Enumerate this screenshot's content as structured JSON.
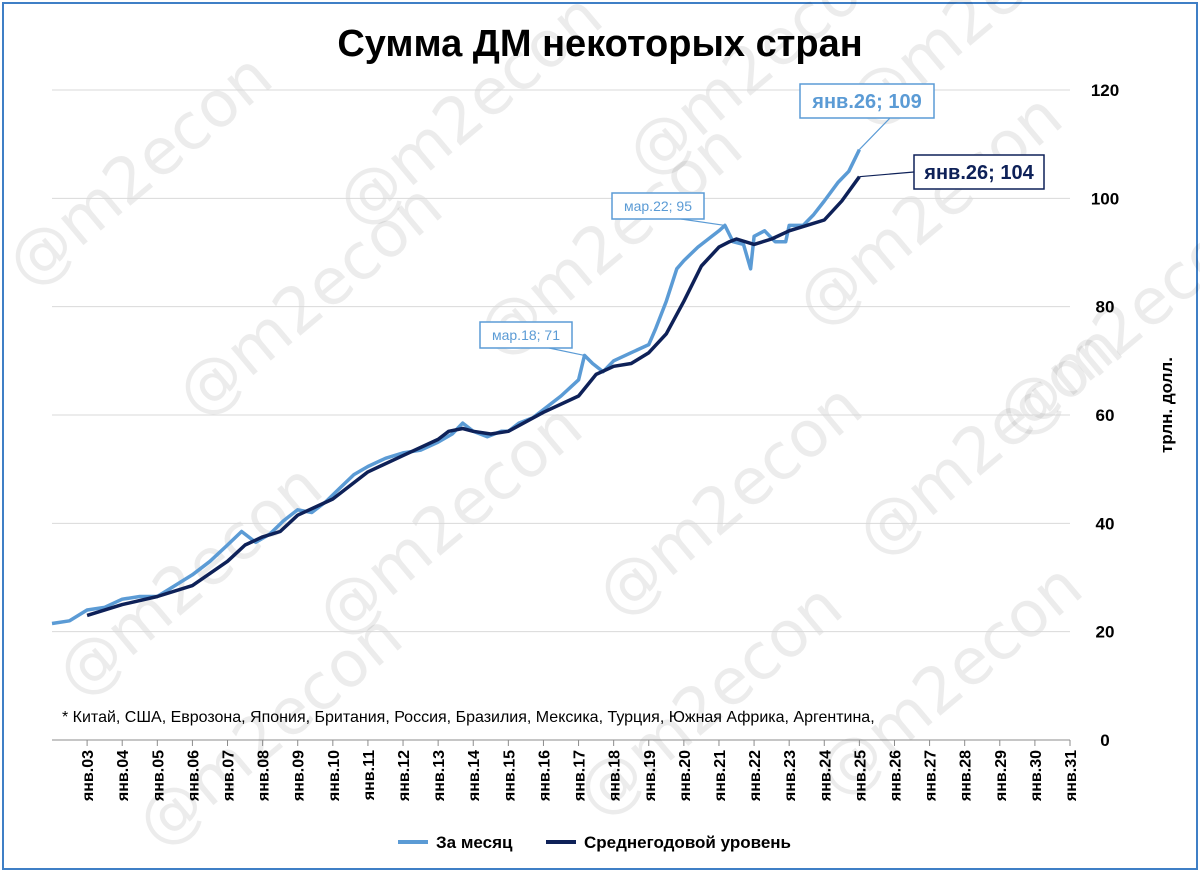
{
  "chart_data": {
    "type": "line",
    "title": "Сумма ДМ некоторых стран",
    "ylabel": "трлн. долл.",
    "ylim": [
      0,
      120
    ],
    "yticks": [
      "0",
      "20",
      "40",
      "60",
      "80",
      "100",
      "120"
    ],
    "grid": true,
    "legend_position": "bottom",
    "x_labels": [
      "янв.03",
      "янв.04",
      "янв.05",
      "янв.06",
      "янв.07",
      "янв.08",
      "янв.09",
      "янв.10",
      "янв.11",
      "янв.12",
      "янв.13",
      "янв.14",
      "янв.15",
      "янв.16",
      "янв.17",
      "янв.18",
      "янв.19",
      "янв.20",
      "янв.21",
      "янв.22",
      "янв.23",
      "янв.24",
      "янв.25",
      "янв.26",
      "янв.27",
      "янв.28",
      "янв.29",
      "янв.30",
      "янв.31"
    ],
    "footnote": "* Китай, США, Еврозона, Япония, Британия, Россия, Бразилия, Мексика, Турция, Южная Африка, Аргентина,",
    "watermark": "@m2econ",
    "series": [
      {
        "name": "За месяц",
        "color": "#5b9bd5",
        "x": [
          2003.0,
          2003.5,
          2004.0,
          2004.5,
          2005.0,
          2005.5,
          2006.0,
          2006.5,
          2007.0,
          2007.5,
          2008.0,
          2008.4,
          2008.8,
          2009.2,
          2009.6,
          2010.0,
          2010.4,
          2010.8,
          2011.2,
          2011.6,
          2012.0,
          2012.5,
          2013.0,
          2013.5,
          2014.0,
          2014.4,
          2014.7,
          2015.0,
          2015.4,
          2015.8,
          2016.0,
          2016.3,
          2016.7,
          2017.0,
          2017.5,
          2018.0,
          2018.17,
          2018.4,
          2018.7,
          2019.0,
          2019.5,
          2020.0,
          2020.2,
          2020.5,
          2020.8,
          2021.0,
          2021.4,
          2021.8,
          2022.0,
          2022.17,
          2022.4,
          2022.7,
          2022.9,
          2023.0,
          2023.3,
          2023.6,
          2023.9,
          2024.0,
          2024.4,
          2024.7,
          2025.0,
          2025.4,
          2025.7,
          2026.0
        ],
        "y": [
          21.5,
          22.0,
          24.0,
          24.5,
          26.0,
          26.5,
          26.5,
          28.5,
          30.5,
          33.0,
          36.0,
          38.5,
          36.5,
          38.0,
          40.5,
          42.5,
          42.0,
          44.0,
          46.5,
          49.0,
          50.5,
          52.0,
          53.0,
          53.5,
          55.0,
          56.5,
          58.5,
          57.0,
          56.0,
          57.0,
          57.0,
          58.5,
          59.5,
          61.0,
          63.5,
          66.5,
          71.0,
          69.5,
          68.0,
          70.0,
          71.5,
          73.0,
          76.0,
          81.0,
          87.0,
          88.5,
          91.0,
          93.0,
          94.0,
          95.0,
          92.0,
          91.5,
          87.0,
          93.0,
          94.0,
          92.0,
          92.0,
          95.0,
          95.0,
          97.0,
          99.5,
          103.0,
          105.0,
          109.0
        ]
      },
      {
        "name": "Среднегодовой уровень",
        "color": "#0e2158",
        "x": [
          2004.0,
          2005.0,
          2006.0,
          2007.0,
          2008.0,
          2008.5,
          2009.0,
          2009.5,
          2010.0,
          2011.0,
          2012.0,
          2013.0,
          2014.0,
          2014.3,
          2014.7,
          2015.0,
          2015.5,
          2016.0,
          2017.0,
          2018.0,
          2018.5,
          2019.0,
          2019.5,
          2020.0,
          2020.5,
          2021.0,
          2021.5,
          2022.0,
          2022.3,
          2022.5,
          2023.0,
          2023.5,
          2024.0,
          2024.5,
          2025.0,
          2025.5,
          2026.0
        ],
        "y": [
          23.0,
          25.0,
          26.5,
          28.5,
          33.0,
          36.0,
          37.5,
          38.5,
          41.5,
          44.5,
          49.5,
          52.5,
          55.5,
          57.0,
          57.5,
          57.0,
          56.5,
          57.0,
          60.5,
          63.5,
          67.5,
          69.0,
          69.5,
          71.5,
          75.0,
          81.0,
          87.5,
          91.0,
          92.0,
          92.5,
          91.5,
          92.5,
          94.0,
          95.0,
          96.0,
          99.5,
          104.0
        ]
      }
    ],
    "annotations": [
      {
        "text": "мар.18; 71",
        "series": 0,
        "x": 2018.17,
        "y": 71
      },
      {
        "text": "мар.22; 95",
        "series": 0,
        "x": 2022.17,
        "y": 95
      },
      {
        "text": "янв.26; 109",
        "series": 0,
        "x": 2026.0,
        "y": 109
      },
      {
        "text": "янв.26; 104",
        "series": 1,
        "x": 2026.0,
        "y": 104
      }
    ]
  }
}
